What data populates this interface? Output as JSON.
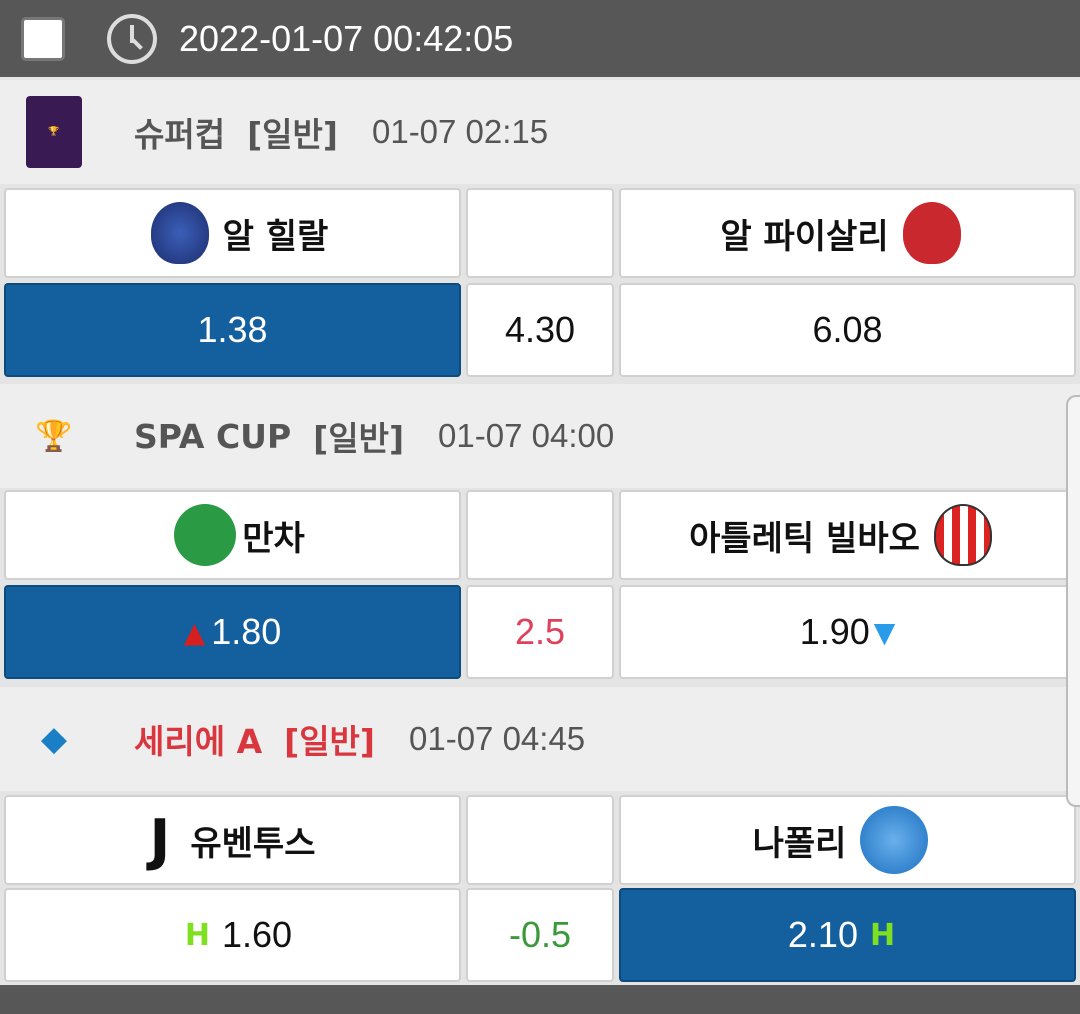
{
  "header": {
    "datetime": "2022-01-07 00:42:05",
    "icon": "clock-icon"
  },
  "matches": [
    {
      "league": "슈퍼컵",
      "type": "[일반]",
      "time": "01-07 02:15",
      "league_color": "#555555",
      "home": "알 힐랄",
      "away": "알 파이살리",
      "odds": {
        "home": "1.38",
        "mid": "4.30",
        "away": "6.08"
      },
      "selected": "home",
      "mid_color": "#111111"
    },
    {
      "league": "SPA CUP",
      "type": "[일반]",
      "time": "01-07 04:00",
      "league_color": "#555555",
      "home": "만차",
      "away": "아틀레틱 빌바오",
      "odds": {
        "home": "1.80",
        "mid": "2.5",
        "away": "1.90"
      },
      "selected": "home",
      "mid_color": "#e0405a",
      "home_trend": "up",
      "away_trend": "down"
    },
    {
      "league": "세리에 A",
      "type": "[일반]",
      "time": "01-07 04:45",
      "league_color": "#d9363e",
      "home": "유벤투스",
      "away": "나폴리",
      "odds": {
        "home": "1.60",
        "mid": "-0.5",
        "away": "2.10"
      },
      "selected": "away",
      "mid_color": "#3a9a3a",
      "marker": "H"
    }
  ]
}
